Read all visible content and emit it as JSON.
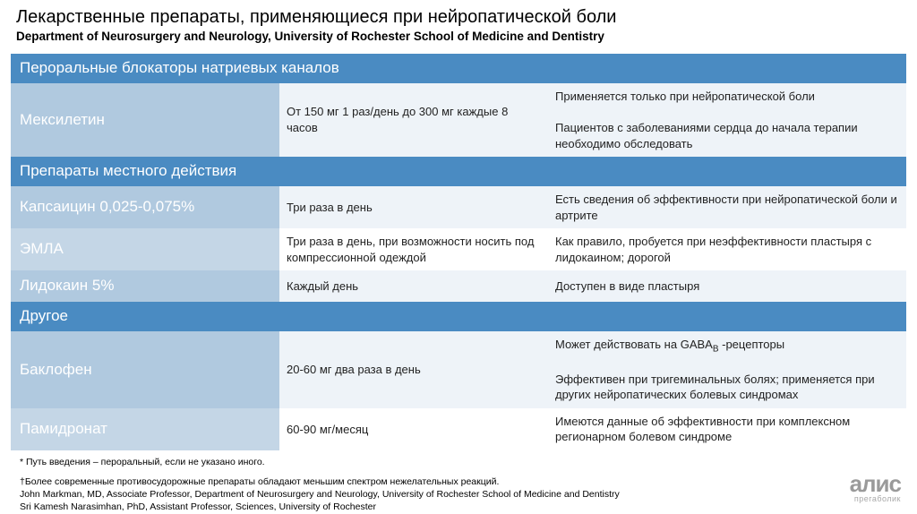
{
  "header": {
    "title": "Лекарственные препараты, применяющиеся при нейропатической боли",
    "subtitle": "Department of Neurosurgery and Neurology, University of Rochester School of Medicine and Dentistry"
  },
  "sections": [
    {
      "heading": "Пероральные блокаторы натриевых каналов",
      "rows": [
        {
          "name": "Мексилетин",
          "dose": "От 150 мг 1 раз/день до 300 мг каждые 8 часов",
          "note": "Применяется только при нейропатической боли\n\nПациентов с заболеваниями сердца до начала терапии необходимо обследовать",
          "alt": true
        }
      ]
    },
    {
      "heading": "Препараты местного действия",
      "rows": [
        {
          "name": "Капсаицин 0,025-0,075%",
          "dose": "Три раза в день",
          "note": "Есть сведения об эффективности при нейропатической боли и артрите",
          "alt": true
        },
        {
          "name": "ЭМЛА",
          "dose": "Три раза в день, при возможности носить под компрессионной одеждой",
          "note": "Как правило, пробуется при неэффективности пластыря с лидокаином; дорогой",
          "alt": false
        },
        {
          "name": "Лидокаин 5%",
          "dose": "Каждый день",
          "note": "Доступен в виде пластыря",
          "alt": true
        }
      ]
    },
    {
      "heading": "Другое",
      "rows": [
        {
          "name": "Баклофен",
          "dose": "20-60 мг два раза в день",
          "note_html": "Может действовать на GABA<sub>B</sub> -рецепторы<br><br>Эффективен при тригеминальных болях; применяется при других нейропатических болевых синдромах",
          "alt": true
        },
        {
          "name": "Памидронат",
          "dose": "60-90 мг/месяц",
          "note": "Имеются данные об эффективности при комплексном регионарном болевом синдроме",
          "alt": false
        }
      ]
    }
  ],
  "footnotes": {
    "star": "* Путь введения – пероральный, если не указано иного.",
    "lines": [
      "†Более современные противосудорожные препараты обладают меньшим спектром нежелательных реакций.",
      "John Markman, MD, Associate Professor, Department of Neurosurgery and Neurology, University of Rochester School of Medicine and Dentistry",
      "Sri Kamesh Narasimhan, PhD, Assistant Professor, Sciences, University of Rochester"
    ]
  },
  "logo": {
    "main": "алис",
    "sub": "прегаболик"
  },
  "colors": {
    "section_header_bg": "#4a8bc2",
    "drug_name_alt_bg": "#b0c9df",
    "drug_name_norm_bg": "#c4d6e6",
    "row_alt_bg": "#eef3f8",
    "row_norm_bg": "#ffffff"
  }
}
